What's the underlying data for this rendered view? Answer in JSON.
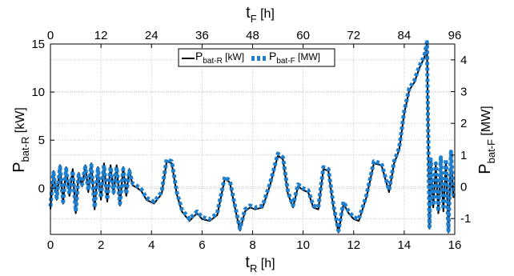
{
  "chart_data": {
    "type": "line",
    "axes": {
      "bottom": {
        "label_main": "t",
        "label_sub": "R",
        "label_unit": " [h]",
        "ticks": [
          0,
          2,
          4,
          6,
          8,
          10,
          12,
          14,
          16
        ],
        "range": [
          0,
          16
        ]
      },
      "top": {
        "label_main": "t",
        "label_sub": "F",
        "label_unit": " [h]",
        "ticks": [
          0,
          12,
          24,
          36,
          48,
          60,
          72,
          84,
          96
        ],
        "range": [
          0,
          96
        ]
      },
      "left": {
        "label_main": "P",
        "label_sub": "bat-R",
        "label_unit": " [kW]",
        "ticks": [
          0,
          5,
          10,
          15
        ],
        "range": [
          -4.8,
          15
        ]
      },
      "right": {
        "label_main": "P",
        "label_sub": "bat-F",
        "label_unit": " [MW]",
        "ticks": [
          -1,
          0,
          1,
          2,
          3,
          4
        ],
        "range": [
          -1.5,
          4.5
        ]
      }
    },
    "legend": {
      "position": "top-center",
      "items": [
        {
          "main": "P",
          "sub": "bat-R",
          "unit": " [kW]",
          "style": "solid",
          "color": "#000000"
        },
        {
          "main": "P",
          "sub": "bat-F",
          "unit": " [MW]",
          "style": "dashed",
          "color": "#1f7fcf"
        }
      ]
    },
    "grid": true,
    "series": [
      {
        "style": "solid",
        "color": "#000000",
        "x": [
          0,
          0.12,
          0.25,
          0.38,
          0.5,
          0.62,
          0.75,
          0.88,
          1,
          1.12,
          1.25,
          1.38,
          1.5,
          1.62,
          1.75,
          1.88,
          2,
          2.12,
          2.25,
          2.38,
          2.5,
          2.62,
          2.75,
          2.88,
          3,
          3.12,
          3.25,
          3.4,
          3.6,
          3.8,
          4.1,
          4.4,
          4.6,
          4.8,
          5,
          5.2,
          5.5,
          5.8,
          6,
          6.3,
          6.6,
          6.9,
          7.1,
          7.3,
          7.5,
          7.7,
          7.9,
          8.1,
          8.4,
          8.7,
          9,
          9.2,
          9.4,
          9.6,
          9.8,
          10,
          10.2,
          10.4,
          10.6,
          10.8,
          11,
          11.2,
          11.4,
          11.6,
          11.8,
          12,
          12.2,
          12.5,
          12.8,
          13.1,
          13.4,
          13.6,
          13.8,
          14,
          14.2,
          14.4,
          14.6,
          14.8,
          14.9,
          15,
          15.05,
          15.15,
          15.25,
          15.35,
          15.45,
          15.55,
          15.65,
          15.75,
          15.85,
          15.95
        ],
        "y": [
          -2.2,
          1.8,
          -1.2,
          2.4,
          -1.6,
          2.2,
          -0.8,
          2.0,
          -2.6,
          1.6,
          0.2,
          2.4,
          -0.4,
          2.6,
          -2.2,
          2.2,
          -1.2,
          2.6,
          -1.4,
          2.4,
          -0.6,
          2.4,
          -1.8,
          2.2,
          -0.8,
          2.0,
          0.3,
          0.1,
          -0.3,
          -1.2,
          -1.6,
          -0.6,
          2.8,
          2.6,
          -0.6,
          -2.4,
          -3.4,
          -2.6,
          -3.2,
          -3.4,
          -2.8,
          1.0,
          0.6,
          -2.0,
          -4.4,
          -2.4,
          -2.0,
          -2.2,
          -2.0,
          0.4,
          3.4,
          3.0,
          -0.6,
          -2.0,
          0.2,
          -0.2,
          -0.4,
          -2.0,
          -2.2,
          2.0,
          1.8,
          -2.0,
          -4.6,
          -1.6,
          -2.6,
          -3.2,
          -3.4,
          -1.0,
          2.6,
          2.4,
          -0.4,
          2.6,
          4.0,
          7.8,
          10.2,
          11.0,
          12.5,
          13.6,
          15.0,
          -4.2,
          2.8,
          -2.0,
          2.4,
          -2.6,
          3.0,
          -2.4,
          2.8,
          -4.6,
          3.6,
          -1.0
        ]
      },
      {
        "style": "dashed",
        "color": "#1f7fcf",
        "x": [
          0,
          0.12,
          0.25,
          0.38,
          0.5,
          0.62,
          0.75,
          0.88,
          1,
          1.12,
          1.25,
          1.38,
          1.5,
          1.62,
          1.75,
          1.88,
          2,
          2.12,
          2.25,
          2.38,
          2.5,
          2.62,
          2.75,
          2.88,
          3,
          3.12,
          3.25,
          3.4,
          3.6,
          3.8,
          4.1,
          4.4,
          4.6,
          4.8,
          5,
          5.2,
          5.5,
          5.8,
          6,
          6.3,
          6.6,
          6.9,
          7.1,
          7.3,
          7.5,
          7.7,
          7.9,
          8.1,
          8.4,
          8.7,
          9,
          9.2,
          9.4,
          9.6,
          9.8,
          10,
          10.2,
          10.4,
          10.6,
          10.8,
          11,
          11.2,
          11.4,
          11.6,
          11.8,
          12,
          12.2,
          12.5,
          12.8,
          13.1,
          13.4,
          13.6,
          13.8,
          14,
          14.2,
          14.4,
          14.6,
          14.8,
          14.9,
          15,
          15.05,
          15.15,
          15.25,
          15.35,
          15.45,
          15.55,
          15.65,
          15.75,
          15.85,
          15.95
        ],
        "y": [
          -1.9,
          1.6,
          -1.0,
          2.2,
          -1.4,
          2.0,
          -0.6,
          1.8,
          -2.4,
          1.4,
          0.4,
          2.2,
          -0.2,
          2.4,
          -2.0,
          2.0,
          -1.0,
          2.4,
          -1.2,
          2.2,
          -0.4,
          2.2,
          -1.6,
          2.0,
          -0.6,
          1.8,
          0.5,
          0.3,
          -0.1,
          -1.0,
          -1.4,
          -0.4,
          3.0,
          2.8,
          -0.4,
          -2.2,
          -3.2,
          -2.4,
          -3.0,
          -3.2,
          -2.6,
          1.2,
          0.8,
          -1.8,
          -4.2,
          -2.2,
          -1.8,
          -2.0,
          -1.8,
          0.6,
          3.6,
          3.2,
          -0.4,
          -1.8,
          0.4,
          0.0,
          -0.2,
          -1.8,
          -2.0,
          2.2,
          2.0,
          -1.8,
          -4.4,
          -1.4,
          -2.4,
          -3.0,
          -3.2,
          -0.8,
          2.8,
          2.6,
          -0.2,
          2.8,
          4.2,
          8.0,
          10.4,
          11.2,
          12.7,
          13.8,
          15.2,
          -4.0,
          3.0,
          -1.8,
          2.6,
          -2.4,
          3.2,
          -2.2,
          3.0,
          -4.4,
          3.8,
          -0.8
        ]
      }
    ]
  }
}
